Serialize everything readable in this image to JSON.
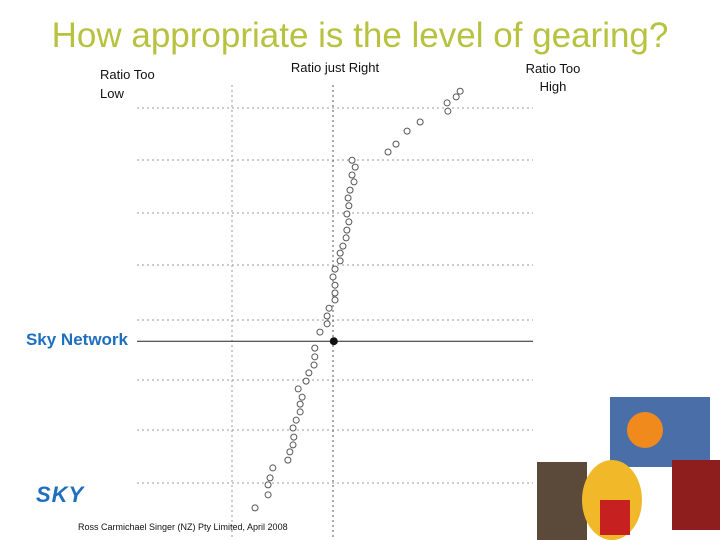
{
  "chart_data": {
    "type": "scatter",
    "title": "How appropriate is the level of gearing?",
    "label_low": "Ratio Too Low",
    "label_right": "Ratio just Right",
    "label_high": "Ratio Too High",
    "x": [
      29.8,
      33.1,
      33.1,
      33.6,
      34.3,
      38.1,
      38.6,
      39.4,
      39.6,
      39.4,
      40.2,
      41.2,
      41.2,
      41.7,
      40.7,
      42.7,
      43.4,
      44.7,
      44.9,
      44.9,
      46.2,
      48.0,
      48.0,
      48.5,
      50.0,
      50.0,
      50.0,
      49.5,
      50.0,
      51.3,
      51.3,
      52.0,
      52.8,
      53.0,
      53.5,
      53.0,
      53.5,
      53.3,
      53.8,
      54.8,
      54.3,
      55.1,
      54.3,
      63.4,
      65.4,
      68.2,
      71.5,
      78.5,
      78.3,
      80.6,
      81.6
    ],
    "values": [
      2.8,
      5.8,
      8.1,
      9.7,
      12.0,
      13.8,
      15.7,
      17.3,
      19.1,
      21.2,
      23.0,
      24.9,
      26.7,
      28.3,
      30.2,
      32.0,
      33.9,
      35.7,
      37.6,
      39.6,
      43.3,
      45.2,
      47.0,
      48.8,
      50.7,
      52.3,
      54.1,
      56.0,
      57.8,
      59.7,
      61.5,
      63.1,
      65.0,
      66.8,
      68.7,
      70.5,
      72.4,
      74.2,
      76.0,
      77.9,
      79.5,
      81.3,
      82.9,
      84.8,
      86.6,
      89.6,
      91.7,
      94.2,
      96.1,
      97.5,
      98.8
    ],
    "highlight": {
      "label": "Sky Network",
      "x": 49.7,
      "y": 41.2
    },
    "xlim": [
      0,
      100
    ],
    "ylim": [
      0,
      100
    ],
    "footer": "Ross Carmichael Singer (NZ) Pty Limited, April 2008",
    "logo": "SKY"
  }
}
